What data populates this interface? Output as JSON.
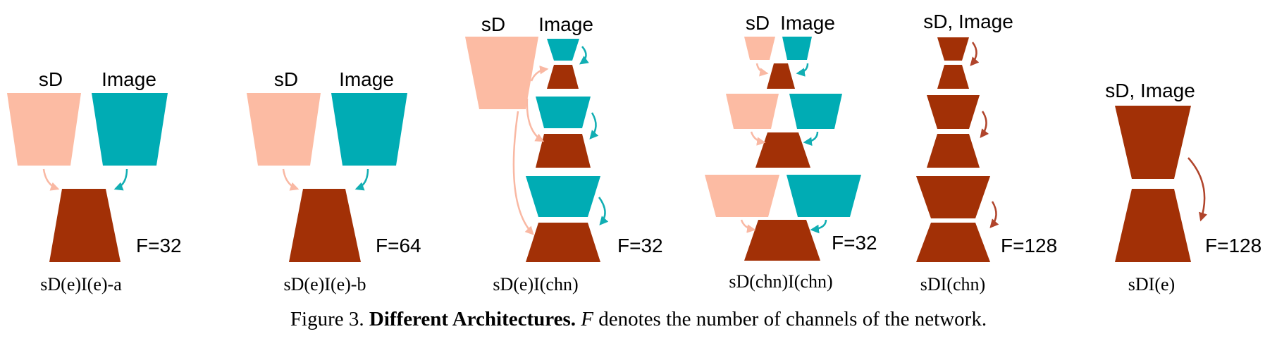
{
  "colors": {
    "sd_encoder": "#fcbba3",
    "image_encoder": "#00acb4",
    "decoder": "#a23006",
    "arrow_sd": "#f9b8a3",
    "arrow_image": "#11aeb3",
    "arrow_joint": "#b0442b"
  },
  "panels": [
    {
      "name": "sD(e)I(e)-a",
      "f_label": "F=32",
      "labels": [
        "sD",
        "Image"
      ]
    },
    {
      "name": "sD(e)I(e)-b",
      "f_label": "F=64",
      "labels": [
        "sD",
        "Image"
      ]
    },
    {
      "name": "sD(e)I(chn)",
      "f_label": "F=32",
      "labels": [
        "sD",
        "Image"
      ]
    },
    {
      "name": "sD(chn)I(chn)",
      "f_label": "F=32",
      "labels": [
        "sD",
        "Image"
      ]
    },
    {
      "name": "sDI(chn)",
      "f_label": "F=128",
      "labels": [
        "sD, Image"
      ]
    },
    {
      "name": "sDI(e)",
      "f_label": "F=128",
      "labels": [
        "sD, Image"
      ]
    }
  ],
  "caption": {
    "prefix": "Figure 3.",
    "bold": "Different Architectures.",
    "symbol": "F",
    "rest": "denotes the number of channels of the network."
  }
}
